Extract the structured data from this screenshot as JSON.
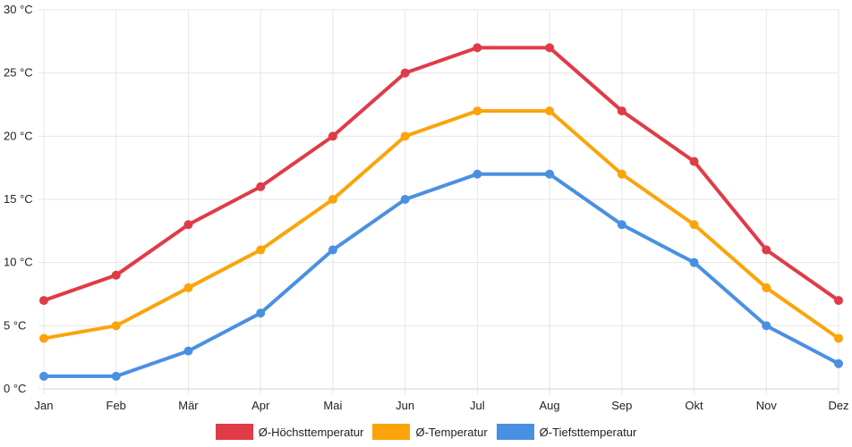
{
  "chart_data": {
    "type": "line",
    "categories": [
      "Jan",
      "Feb",
      "Mär",
      "Apr",
      "Mai",
      "Jun",
      "Jul",
      "Aug",
      "Sep",
      "Okt",
      "Nov",
      "Dez"
    ],
    "ylim": [
      0,
      30
    ],
    "yticks": [
      0,
      5,
      10,
      15,
      20,
      25,
      30
    ],
    "y_unit": "°C",
    "grid": true,
    "legend_position": "bottom",
    "series": [
      {
        "name": "Ø-Höchsttemperatur",
        "color": "#e03b47",
        "values": [
          7,
          9,
          13,
          16,
          20,
          25,
          27,
          27,
          22,
          18,
          11,
          7
        ]
      },
      {
        "name": "Ø-Temperatur",
        "color": "#fba40a",
        "values": [
          4,
          5,
          8,
          11,
          15,
          20,
          22,
          22,
          17,
          13,
          8,
          4
        ]
      },
      {
        "name": "Ø-Tiefsttemperatur",
        "color": "#4a90e2",
        "values": [
          1,
          1,
          3,
          6,
          11,
          15,
          17,
          17,
          13,
          10,
          5,
          2
        ]
      }
    ]
  }
}
